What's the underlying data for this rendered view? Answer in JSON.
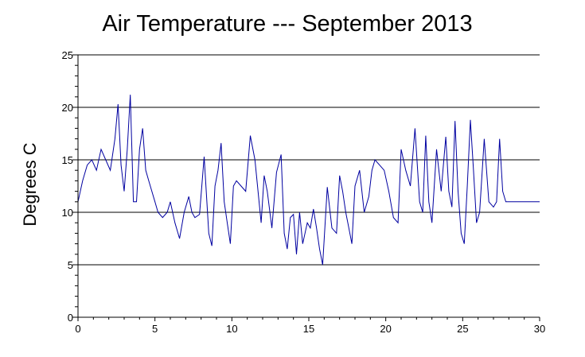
{
  "chart_data": {
    "type": "line",
    "title": "Air Temperature --- September 2013",
    "ylabel": "Degrees C",
    "xlabel": "",
    "xlim": [
      0,
      30
    ],
    "ylim": [
      0,
      25
    ],
    "xticks": [
      "0",
      "5",
      "10",
      "15",
      "20",
      "25",
      "30"
    ],
    "yticks": [
      "0",
      "5",
      "10",
      "15",
      "20",
      "25"
    ],
    "grid": "horizontal",
    "line_color": "#0000a0",
    "series": [
      {
        "x": [
          0,
          0.3,
          0.6,
          0.9,
          1.2,
          1.5,
          1.8,
          2.1,
          2.4,
          2.6,
          2.8,
          3.0,
          3.2,
          3.4,
          3.6,
          3.8,
          4.0,
          4.2,
          4.4,
          4.6,
          4.8,
          5.0,
          5.2,
          5.5,
          5.8,
          6.0,
          6.3,
          6.6,
          6.9,
          7.2,
          7.4,
          7.6,
          7.9,
          8.2,
          8.5,
          8.7,
          8.9,
          9.1,
          9.3,
          9.5,
          9.7,
          9.9,
          10.1,
          10.3,
          10.6,
          10.9,
          11.2,
          11.5,
          11.7,
          11.9,
          12.1,
          12.3,
          12.6,
          12.9,
          13.2,
          13.4,
          13.6,
          13.8,
          14.0,
          14.2,
          14.4,
          14.6,
          14.9,
          15.1,
          15.3,
          15.5,
          15.7,
          15.9,
          16.2,
          16.5,
          16.8,
          17.0,
          17.2,
          17.4,
          17.6,
          17.8,
          18.0,
          18.3,
          18.6,
          18.9,
          19.1,
          19.3,
          19.6,
          19.9,
          20.2,
          20.5,
          20.8,
          21.0,
          21.3,
          21.6,
          21.9,
          22.2,
          22.4,
          22.6,
          22.8,
          23.0,
          23.3,
          23.6,
          23.9,
          24.1,
          24.3,
          24.5,
          24.7,
          24.9,
          25.1,
          25.3,
          25.5,
          25.7,
          25.9,
          26.1,
          26.4,
          26.7,
          27.0,
          27.2,
          27.4,
          27.6,
          27.8,
          28.0,
          28.2,
          28.4,
          28.6,
          28.8,
          29.0,
          29.2,
          29.5,
          29.8,
          30.0
        ],
        "y": [
          11.0,
          13.0,
          14.5,
          15.0,
          14.0,
          16.0,
          15.0,
          14.0,
          17.0,
          20.3,
          14.5,
          12.0,
          16.0,
          21.2,
          11.0,
          11.0,
          16.0,
          18.0,
          14.0,
          13.0,
          12.0,
          11.0,
          10.0,
          9.5,
          10.0,
          11.0,
          9.0,
          7.5,
          10.0,
          11.5,
          10.0,
          9.5,
          9.8,
          15.3,
          8.0,
          6.8,
          12.5,
          14.0,
          16.6,
          11.0,
          9.0,
          7.0,
          12.5,
          13.0,
          12.5,
          12.0,
          17.3,
          15.0,
          12.0,
          9.0,
          13.5,
          12.0,
          8.5,
          13.8,
          15.5,
          8.0,
          6.5,
          9.5,
          9.8,
          6.0,
          10.0,
          7.0,
          9.0,
          8.5,
          10.3,
          8.5,
          6.5,
          5.0,
          12.4,
          8.5,
          8.0,
          13.5,
          12.0,
          10.0,
          8.5,
          7.0,
          12.5,
          14.0,
          10.0,
          11.5,
          14.0,
          15.0,
          14.5,
          14.0,
          12.0,
          9.5,
          9.0,
          16.0,
          14.0,
          12.5,
          18.0,
          11.0,
          10.0,
          17.3,
          11.0,
          9.0,
          16.0,
          12.0,
          17.2,
          12.0,
          10.5,
          18.7,
          12.0,
          8.0,
          7.0,
          12.5,
          18.8,
          14.0,
          9.0,
          10.0,
          17.0,
          11.0,
          10.5,
          11.0,
          17.0,
          12.0,
          11.0,
          11.0,
          11.0,
          11.0,
          11.0,
          11.0,
          11.0,
          11.0,
          11.0,
          11.0,
          11.0
        ]
      }
    ]
  }
}
